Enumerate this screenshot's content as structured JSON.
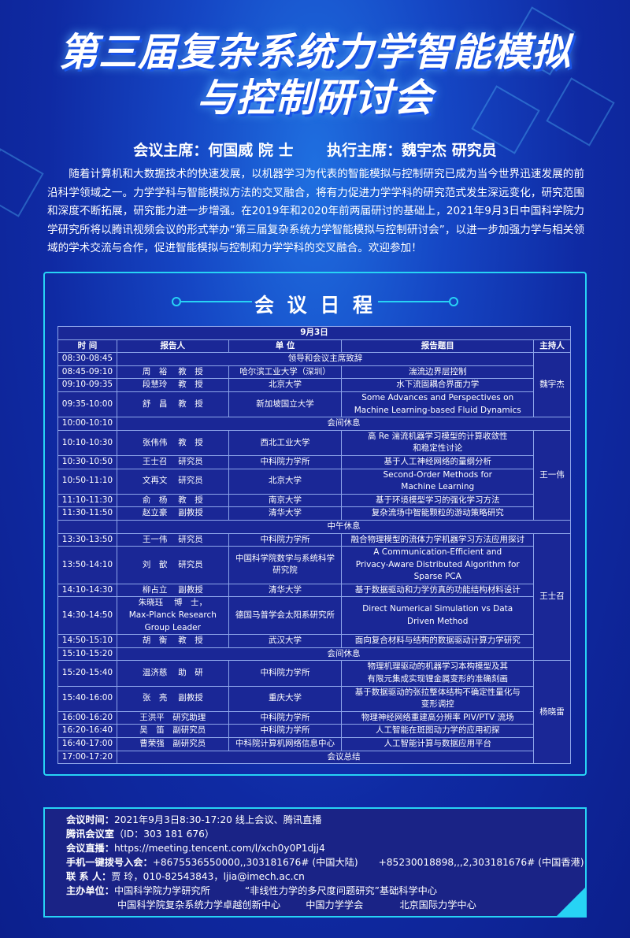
{
  "title": {
    "line1": "第三届复杂系统力学智能模拟",
    "line2": "与控制研讨会"
  },
  "chairs": {
    "chair": "会议主席：何国威  院 士",
    "exec_chair": "执行主席：魏宇杰  研究员"
  },
  "intro": "随着计算机和大数据技术的快速发展，以机器学习为代表的智能模拟与控制研究已成为当今世界迅速发展的前沿科学领域之一。力学学科与智能模拟方法的交叉融合，将有力促进力学学科的研究范式发生深远变化，研究范围和深度不断拓展，研究能力进一步增强。在2019年和2020年前两届研讨的基础上，2021年9月3日中国科学院力学研究所将以腾讯视频会议的形式举办“第三届复杂系统力学智能模拟与控制研讨会”，以进一步加强力学与相关领域的学术交流与合作，促进智能模拟与控制和力学学科的交叉融合。欢迎参加！",
  "schedule": {
    "heading": "会 议 日 程",
    "date": "9月3日",
    "columns": [
      "时 间",
      "报告人",
      "单 位",
      "报告题目",
      "主持人"
    ],
    "rows": [
      {
        "time": "08:30-08:45",
        "span": "领导和会议主席致辞",
        "host": "魏宇杰",
        "host_rows": 4
      },
      {
        "time": "08:45-09:10",
        "speaker": "周　裕　 教　授",
        "unit": "哈尔滨工业大学（深圳）",
        "topic": "湍流边界层控制"
      },
      {
        "time": "09:10-09:35",
        "speaker": "段慧玲　 教　授",
        "unit": "北京大学",
        "topic": "水下流固耦合界面力学"
      },
      {
        "time": "09:35-10:00",
        "speaker": "舒　昌　 教　授",
        "unit": "新加坡国立大学",
        "topic": "Some Advances and Perspectives on\nMachine Learning-based Fluid Dynamics"
      },
      {
        "time": "10:00-10:10",
        "full": "会间休息"
      },
      {
        "time": "10:10-10:30",
        "speaker": "张伟伟　 教　授",
        "unit": "西北工业大学",
        "topic": "高 Re 湍流机器学习模型的计算收敛性\n和稳定性讨论",
        "host": "王一伟",
        "host_rows": 5
      },
      {
        "time": "10:30-10:50",
        "speaker": "王士召　 研究员",
        "unit": "中科院力学所",
        "topic": "基于人工神经网络的量纲分析"
      },
      {
        "time": "10:50-11:10",
        "speaker": "文再文　 研究员",
        "unit": "北京大学",
        "topic": "Second-Order Methods for\nMachine Learning"
      },
      {
        "time": "11:10-11:30",
        "speaker": "俞　杨　 教　授",
        "unit": "南京大学",
        "topic": "基于环境模型学习的强化学习方法"
      },
      {
        "time": "11:30-11:50",
        "speaker": "赵立豪　 副教授",
        "unit": "清华大学",
        "topic": "复杂流场中智能颗粒的游动策略研究"
      },
      {
        "time": "",
        "full": "中午休息"
      },
      {
        "time": "13:30-13:50",
        "speaker": "王一伟　 研究员",
        "unit": "中科院力学所",
        "topic": "融合物理模型的流体力学机器学习方法应用探讨",
        "host": "王士召",
        "host_rows": 6
      },
      {
        "time": "13:50-14:10",
        "speaker": "刘　歆　 研究员",
        "unit": "中国科学院数学与系统科学\n研究院",
        "topic": "A Communication-Efficient and\nPrivacy-Aware Distributed Algorithm for\nSparse PCA"
      },
      {
        "time": "14:10-14:30",
        "speaker": "柳占立　 副教授",
        "unit": "清华大学",
        "topic": "基于数据驱动和力学仿真的功能结构材料设计"
      },
      {
        "time": "14:30-14:50",
        "speaker": "朱晓珏　 博　士，\nMax-Planck Research\nGroup Leader",
        "unit": "德国马普学会太阳系研究所",
        "topic": "Direct Numerical Simulation vs Data\nDriven Method"
      },
      {
        "time": "14:50-15:10",
        "speaker": "胡　衡　 教　授",
        "unit": "武汉大学",
        "topic": "面向复合材料与结构的数据驱动计算力学研究"
      },
      {
        "time": "15:10-15:20",
        "full": "会间休息"
      },
      {
        "time": "15:20-15:40",
        "speaker": "温济慈　 助　研",
        "unit": "中科院力学所",
        "topic": "物理机理驱动的机器学习本构模型及其\n有限元集成实现锂金属变形的准确刻画",
        "host": "杨晓雷",
        "host_rows": 6
      },
      {
        "time": "15:40-16:00",
        "speaker": "张　亮　 副教授",
        "unit": "重庆大学",
        "topic": "基于数据驱动的张拉整体结构不确定性量化与\n变形调控"
      },
      {
        "time": "16:00-16:20",
        "speaker": "王洪平　研究助理",
        "unit": "中科院力学所",
        "topic": "物理神经网络重建高分辨率 PIV/PTV 流场"
      },
      {
        "time": "16:20-16:40",
        "speaker": "吴　笛　副研究员",
        "unit": "中科院力学所",
        "topic": "人工智能在斑图动力学的应用初探"
      },
      {
        "time": "16:40-17:00",
        "speaker": "曹荣强　副研究员",
        "unit": "中科院计算机网络信息中心",
        "topic": "人工智能计算与数据应用平台"
      },
      {
        "time": "17:00-17:20",
        "full": "会议总结"
      }
    ]
  },
  "footer": {
    "time_label": "会议时间：",
    "time_value": "2021年9月3日8:30-17:20  线上会议、腾讯直播",
    "room_label": "腾讯会议室",
    "room_value": "（ID：303 181 676）",
    "live_label": "会议直播：",
    "live_value": "https://meeting.tencent.com/l/xch0y0P1djj4",
    "dial_label": "手机一键拨号入会：",
    "dial_cn": "+8675536550000,,303181676# (中国大陆)",
    "dial_hk": "+85230018898,,,2,303181676# (中国香港)",
    "contact_label": "联 系 人：",
    "contact_value": "贾 玲，010-82543843，ljia@imech.ac.cn",
    "host_label": "主办单位：",
    "organizers": [
      "中国科学院力学研究所",
      "“非线性力学的多尺度问题研究”基础科学中心",
      "中国科学院复杂系统力学卓越创新中心",
      "中国力学学会",
      "北京国际力学中心"
    ]
  },
  "colors": {
    "background": "#0f2aa3",
    "accent": "#27d3f5",
    "table_bg": "#1a2796"
  }
}
